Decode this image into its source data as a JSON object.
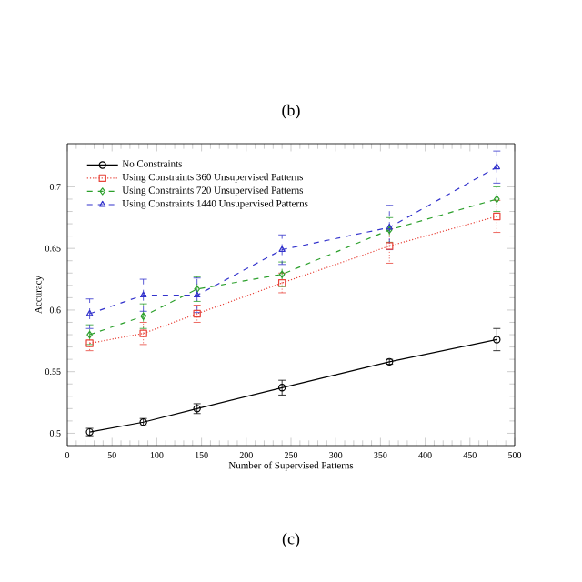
{
  "chart_data": {
    "type": "line",
    "title": "(b)",
    "xlabel": "Number of Supervised Patterns",
    "ylabel": "Accuracy",
    "x": [
      25,
      85,
      145,
      240,
      360,
      480
    ],
    "series": [
      {
        "name": "No Constraints",
        "color": "#000000",
        "marker": "circle",
        "line_style": "solid",
        "values": [
          0.501,
          0.509,
          0.52,
          0.537,
          0.558,
          0.576
        ],
        "errors": [
          0.003,
          0.003,
          0.004,
          0.006,
          0.002,
          0.009
        ]
      },
      {
        "name": "Using Constraints 360 Unsupervised Patterns",
        "color": "#e8443a",
        "marker": "square",
        "line_style": "dotted",
        "values": [
          0.573,
          0.581,
          0.597,
          0.622,
          0.652,
          0.676
        ],
        "errors": [
          0.006,
          0.009,
          0.007,
          0.008,
          0.014,
          0.013
        ]
      },
      {
        "name": "Using Constraints 720 Unsupervised Patterns",
        "color": "#2ca02c",
        "marker": "diamond",
        "line_style": "dashed",
        "values": [
          0.58,
          0.595,
          0.617,
          0.629,
          0.665,
          0.69
        ],
        "errors": [
          0.008,
          0.01,
          0.01,
          0.01,
          0.01,
          0.01
        ]
      },
      {
        "name": "Using Constraints 1440 Unsupervised Patterns",
        "color": "#3333cc",
        "marker": "triangle",
        "line_style": "dashed",
        "values": [
          0.597,
          0.612,
          0.612,
          0.649,
          0.667,
          0.716
        ],
        "errors": [
          0.012,
          0.013,
          0.014,
          0.012,
          0.018,
          0.013
        ]
      }
    ],
    "xlim": [
      0,
      500
    ],
    "xticks": [
      0,
      50,
      100,
      150,
      200,
      250,
      300,
      350,
      400,
      450,
      500
    ],
    "ylim": [
      0.49,
      0.735
    ],
    "yticks": [
      0.5,
      0.55,
      0.6,
      0.65,
      0.7
    ],
    "grid": false,
    "legend": "top left",
    "annotations": [
      "(c)"
    ]
  }
}
